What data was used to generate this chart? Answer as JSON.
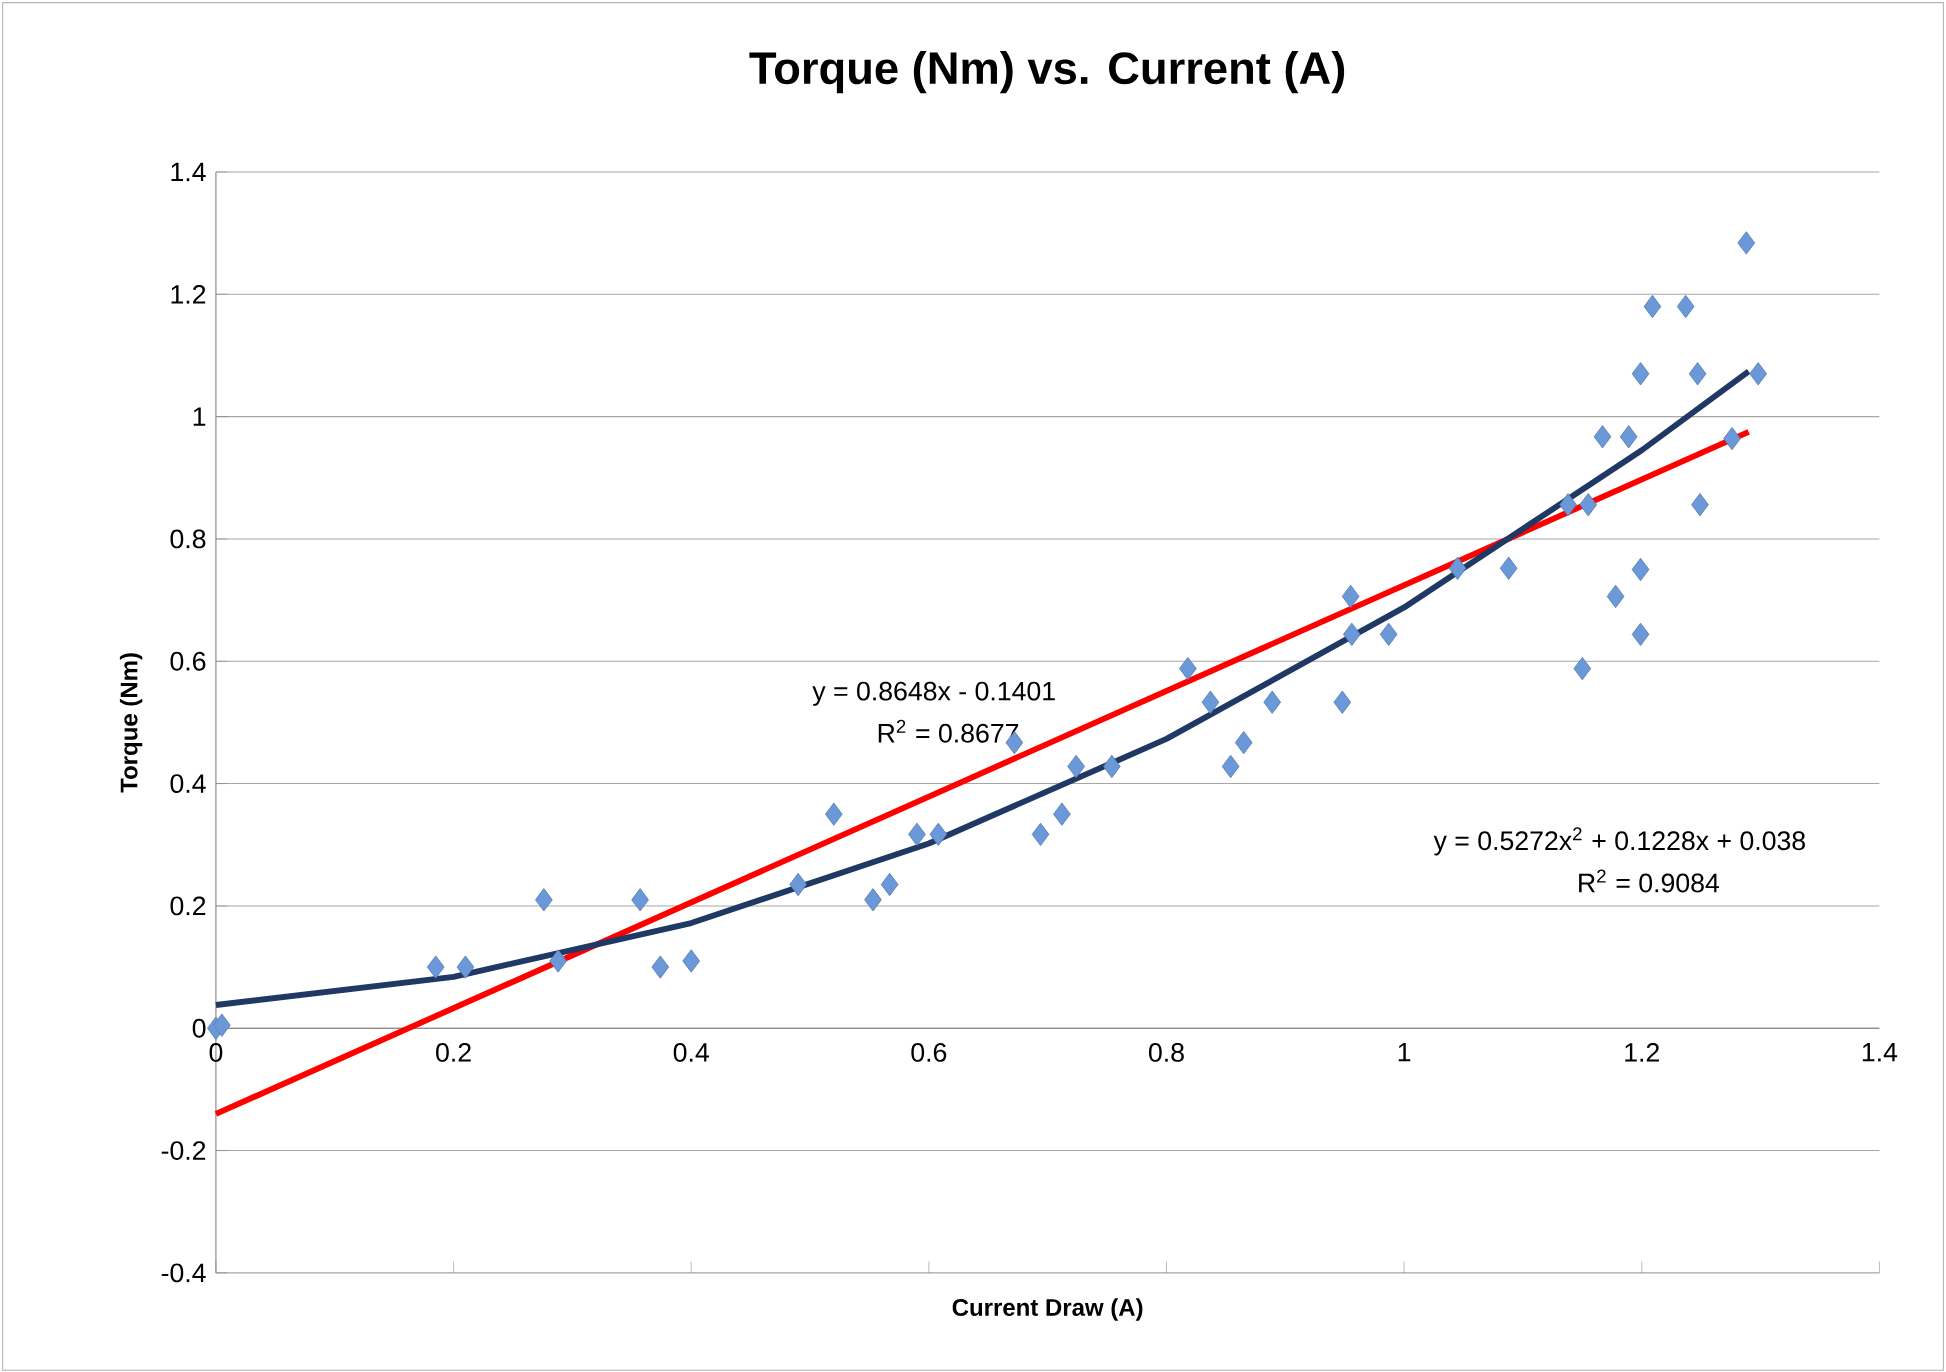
{
  "chart_data": {
    "type": "scatter",
    "title": "Torque (Nm) vs. Current (A)",
    "xlabel": "Current Draw (A)",
    "ylabel": "Torque (Nm)",
    "xlim": [
      0,
      1.4
    ],
    "ylim": [
      -0.4,
      1.4
    ],
    "xticks": [
      0,
      0.2,
      0.4,
      0.6,
      0.8,
      1,
      1.2,
      1.4
    ],
    "yticks": [
      -0.4,
      -0.2,
      0,
      0.2,
      0.4,
      0.6,
      0.8,
      1,
      1.2,
      1.4
    ],
    "grid": "y",
    "marker": "diamond",
    "series": [
      {
        "color": "#6a98d8",
        "x": [
          0.0,
          0.005,
          0.185,
          0.21,
          0.276,
          0.288,
          0.357,
          0.374,
          0.4,
          0.49,
          0.52,
          0.553,
          0.567,
          0.59,
          0.608,
          0.672,
          0.694,
          0.712,
          0.724,
          0.754,
          0.818,
          0.837,
          0.854,
          0.865,
          0.889,
          0.948,
          0.955,
          0.956,
          0.987,
          1.045,
          1.088,
          1.138,
          1.15,
          1.155,
          1.167,
          1.178,
          1.189,
          1.199,
          1.199,
          1.199,
          1.209,
          1.237,
          1.247,
          1.249,
          1.276,
          1.288,
          1.298
        ],
        "values": [
          0.0,
          0.005,
          0.1,
          0.1,
          0.21,
          0.11,
          0.21,
          0.1,
          0.11,
          0.235,
          0.35,
          0.21,
          0.235,
          0.317,
          0.317,
          0.467,
          0.317,
          0.35,
          0.428,
          0.428,
          0.588,
          0.533,
          0.428,
          0.467,
          0.533,
          0.533,
          0.706,
          0.644,
          0.644,
          0.752,
          0.752,
          0.856,
          0.588,
          0.856,
          0.967,
          0.706,
          0.967,
          1.07,
          0.75,
          0.644,
          1.18,
          1.18,
          1.07,
          0.856,
          0.964,
          1.284,
          1.07
        ]
      },
      {
        "type": "line",
        "color": "#ff0000",
        "marker": "none",
        "x": [
          0,
          1.29
        ],
        "values": [
          -0.14,
          0.975
        ]
      },
      {
        "type": "line",
        "color": "#1f3864",
        "marker": "none",
        "x": [
          0,
          0.2,
          0.4,
          0.6,
          0.8,
          1.0,
          1.2,
          1.29
        ],
        "values": [
          0.038,
          0.084,
          0.172,
          0.302,
          0.473,
          0.688,
          0.945,
          1.074
        ]
      }
    ],
    "annotations": [
      "y = 0.8648x - 0.1401",
      "R$^{2}$ = 0.8677",
      "y = 0.5272x$^{2}$ + 0.1228x + 0.038",
      "R$^{2}$ = 0.9084"
    ]
  }
}
